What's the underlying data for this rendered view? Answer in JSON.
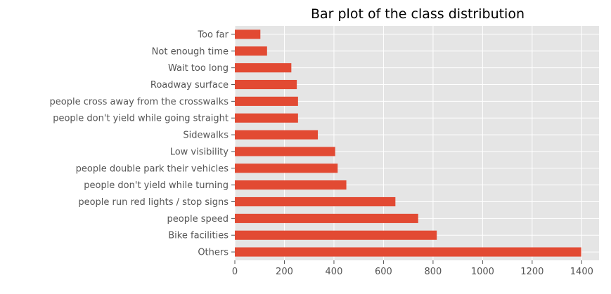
{
  "chart_data": {
    "type": "bar",
    "orientation": "horizontal",
    "title": "Bar plot of the class distribution",
    "xlabel": "",
    "ylabel": "",
    "categories": [
      "Others",
      "Bike facilities",
      "people speed",
      "people run red lights / stop signs",
      "people don't yield while turning",
      "people double park their vehicles",
      "Low visibility",
      "Sidewalks",
      "people don't yield while going straight",
      "people cross away from the crosswalks",
      "Roadway surface",
      "Wait too long",
      "Not enough time",
      "Too far"
    ],
    "values": [
      1398,
      815,
      740,
      648,
      450,
      415,
      405,
      335,
      255,
      255,
      250,
      228,
      130,
      103
    ],
    "xlim": [
      0,
      1470
    ],
    "xticks": [
      0,
      200,
      400,
      600,
      800,
      1000,
      1200,
      1400
    ],
    "grid": true,
    "bar_color": "#E24A33",
    "plot_background": "#E5E5E5",
    "grid_color": "#FFFFFF"
  }
}
